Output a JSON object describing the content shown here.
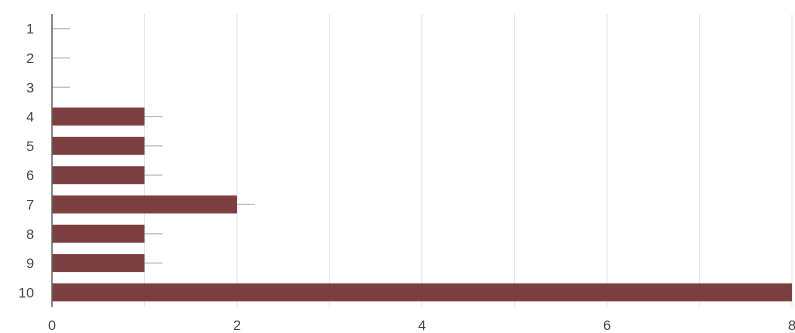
{
  "colors": {
    "bar": "#7b3f3f",
    "grid": "#e6e6e6",
    "axis": "#666666",
    "error_bar": "#bbbbbb",
    "tick_label": "#444444"
  },
  "chart_data": {
    "type": "bar",
    "orientation": "horizontal",
    "categories": [
      "1",
      "2",
      "3",
      "4",
      "5",
      "6",
      "7",
      "8",
      "9",
      "10"
    ],
    "values": [
      0,
      0,
      0,
      1,
      1,
      1,
      2,
      1,
      1,
      8
    ],
    "error_bars": true,
    "xlim": [
      0,
      8
    ],
    "xticks": [
      "0",
      "2",
      "4",
      "6",
      "8"
    ],
    "grid": "vertical gridlines",
    "title": "",
    "xlabel": "",
    "ylabel": ""
  }
}
